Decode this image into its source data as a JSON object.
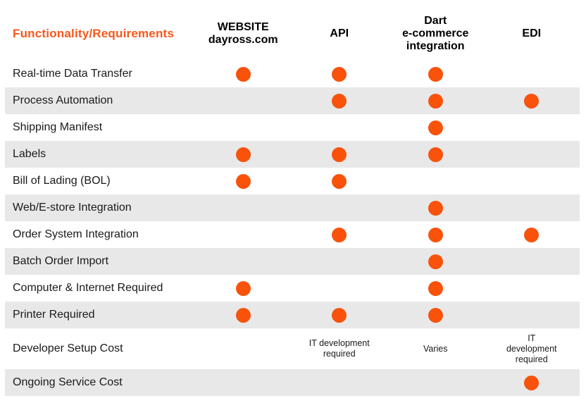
{
  "colors": {
    "accent_orange": "#F8520B",
    "header_orange_text": "#F8571C",
    "row_band_gray": "#E8E8E8",
    "text_black": "#1A1A1A"
  },
  "table": {
    "header": {
      "label": "Functionality/Requirements",
      "columns": [
        "WEBSITE\ndayross.com",
        "API",
        "Dart\ne-commerce\nintegration",
        "EDI"
      ]
    },
    "rows": [
      {
        "label": "Real-time Data Transfer",
        "shaded": false,
        "tall": false,
        "cells": [
          "dot",
          "dot",
          "dot",
          ""
        ]
      },
      {
        "label": "Process Automation",
        "shaded": true,
        "tall": false,
        "cells": [
          "",
          "dot",
          "dot",
          "dot"
        ]
      },
      {
        "label": "Shipping Manifest",
        "shaded": false,
        "tall": false,
        "cells": [
          "",
          "",
          "dot",
          ""
        ]
      },
      {
        "label": "Labels",
        "shaded": true,
        "tall": false,
        "cells": [
          "dot",
          "dot",
          "dot",
          ""
        ]
      },
      {
        "label": "Bill of Lading (BOL)",
        "shaded": false,
        "tall": false,
        "cells": [
          "dot",
          "dot",
          "",
          ""
        ]
      },
      {
        "label": "Web/E-store Integration",
        "shaded": true,
        "tall": false,
        "cells": [
          "",
          "",
          "dot",
          ""
        ]
      },
      {
        "label": "Order System Integration",
        "shaded": false,
        "tall": false,
        "cells": [
          "",
          "dot",
          "dot",
          "dot"
        ]
      },
      {
        "label": "Batch Order Import",
        "shaded": true,
        "tall": false,
        "cells": [
          "",
          "",
          "dot",
          ""
        ]
      },
      {
        "label": "Computer & Internet Required",
        "shaded": false,
        "tall": false,
        "cells": [
          "dot",
          "",
          "dot",
          ""
        ]
      },
      {
        "label": "Printer Required",
        "shaded": true,
        "tall": false,
        "cells": [
          "dot",
          "dot",
          "dot",
          ""
        ]
      },
      {
        "label": "Developer Setup Cost",
        "shaded": false,
        "tall": true,
        "cells": [
          "",
          "IT development\nrequired",
          "Varies",
          "IT\ndevelopment\nrequired"
        ]
      },
      {
        "label": "Ongoing Service Cost",
        "shaded": true,
        "tall": false,
        "cells": [
          "",
          "",
          "",
          "dot"
        ]
      }
    ]
  },
  "chart_data": {
    "type": "table",
    "title": "Functionality/Requirements comparison",
    "row_header": "Functionality/Requirements",
    "columns": [
      "WEBSITE dayross.com",
      "API",
      "Dart e-commerce integration",
      "EDI"
    ],
    "rows": [
      {
        "label": "Real-time Data Transfer",
        "values": [
          true,
          true,
          true,
          false
        ]
      },
      {
        "label": "Process Automation",
        "values": [
          false,
          true,
          true,
          true
        ]
      },
      {
        "label": "Shipping Manifest",
        "values": [
          false,
          false,
          true,
          false
        ]
      },
      {
        "label": "Labels",
        "values": [
          true,
          true,
          true,
          false
        ]
      },
      {
        "label": "Bill of Lading (BOL)",
        "values": [
          true,
          true,
          false,
          false
        ]
      },
      {
        "label": "Web/E-store Integration",
        "values": [
          false,
          false,
          true,
          false
        ]
      },
      {
        "label": "Order System Integration",
        "values": [
          false,
          true,
          true,
          true
        ]
      },
      {
        "label": "Batch Order Import",
        "values": [
          false,
          false,
          true,
          false
        ]
      },
      {
        "label": "Computer & Internet Required",
        "values": [
          true,
          false,
          true,
          false
        ]
      },
      {
        "label": "Printer Required",
        "values": [
          true,
          true,
          true,
          false
        ]
      },
      {
        "label": "Developer Setup Cost",
        "values": [
          "",
          "IT development required",
          "Varies",
          "IT development required"
        ]
      },
      {
        "label": "Ongoing Service Cost",
        "values": [
          false,
          false,
          false,
          true
        ]
      }
    ],
    "legend_position": "none",
    "grid": false
  }
}
